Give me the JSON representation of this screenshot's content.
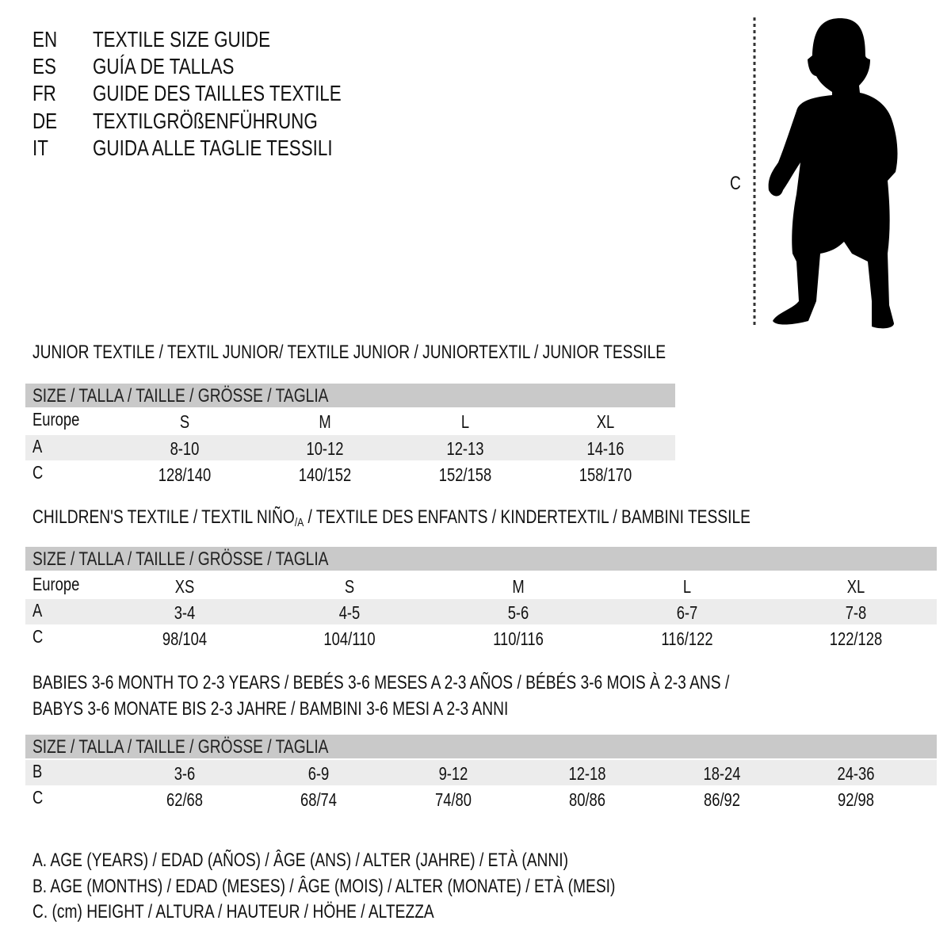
{
  "header": {
    "languages": [
      {
        "code": "EN",
        "title": "TEXTILE SIZE GUIDE"
      },
      {
        "code": "ES",
        "title": "GUÍA DE TALLAS"
      },
      {
        "code": "FR",
        "title": "GUIDE DES TAILLES TEXTILE"
      },
      {
        "code": "DE",
        "title": "TEXTILGRÖßENFÜHRUNG"
      },
      {
        "code": "IT",
        "title": "GUIDA ALLE TAGLIE TESSILI"
      }
    ]
  },
  "figure": {
    "measure_label": "C",
    "icon": "child-silhouette"
  },
  "junior": {
    "title": "JUNIOR TEXTILE / TEXTIL JUNIOR/ TEXTILE JUNIOR / JUNIORTEXTIL / JUNIOR TESSILE",
    "size_header": "SIZE / TALLA / TAILLE / GRÖSSE / TAGLIA",
    "rows": [
      {
        "label": "Europe",
        "values": [
          "S",
          "M",
          "L",
          "XL"
        ]
      },
      {
        "label": "A",
        "values": [
          "8-10",
          "10-12",
          "12-13",
          "14-16"
        ]
      },
      {
        "label": "C",
        "values": [
          "128/140",
          "140/152",
          "152/158",
          "158/170"
        ]
      }
    ]
  },
  "children": {
    "title_main": "CHILDREN'S TEXTILE / TEXTIL NIÑO",
    "title_sub": "/A",
    "title_rest": " / TEXTILE DES ENFANTS / KINDERTEXTIL / BAMBINI TESSILE",
    "size_header": "SIZE / TALLA / TAILLE / GRÖSSE / TAGLIA",
    "rows": [
      {
        "label": "Europe",
        "values": [
          "XS",
          "S",
          "M",
          "L",
          "XL"
        ]
      },
      {
        "label": "A",
        "values": [
          "3-4",
          "4-5",
          "5-6",
          "6-7",
          "7-8"
        ]
      },
      {
        "label": "C",
        "values": [
          "98/104",
          "104/110",
          "110/116",
          "116/122",
          "122/128"
        ]
      }
    ]
  },
  "babies": {
    "title_lines": [
      "BABIES 3-6 MONTH TO 2-3 YEARS / BEBÉS 3-6 MESES A 2-3 AÑOS / BÉBÉS 3-6 MOIS À 2-3 ANS /",
      "BABYS 3-6 MONATE BIS 2-3 JAHRE / BAMBINI 3-6 MESI A 2-3 ANNI"
    ],
    "size_header": "SIZE / TALLA / TAILLE / GRÖSSE / TAGLIA",
    "rows": [
      {
        "label": "B",
        "values": [
          "3-6",
          "6-9",
          "9-12",
          "12-18",
          "18-24",
          "24-36"
        ]
      },
      {
        "label": "C",
        "values": [
          "62/68",
          "68/74",
          "74/80",
          "80/86",
          "86/92",
          "92/98"
        ]
      }
    ]
  },
  "legend": [
    "A. AGE (YEARS) / EDAD (AÑOS) / ÂGE (ANS) / ALTER (JAHRE) / ETÀ (ANNI)",
    "B. AGE (MONTHS) / EDAD (MESES) / ÂGE (MOIS) / ALTER (MONATE) / ETÀ (MESI)",
    "C. (cm) HEIGHT / ALTURA / HAUTEUR / HÖHE / ALTEZZA"
  ],
  "colors": {
    "band": "#c9c9c9",
    "alt_row": "#ececec",
    "text": "#111111"
  }
}
